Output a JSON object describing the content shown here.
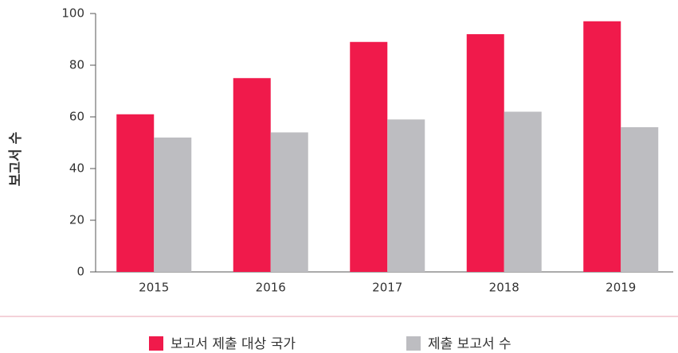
{
  "chart_data": {
    "type": "bar",
    "y_label": "보고서 수",
    "categories": [
      "2015",
      "2016",
      "2017",
      "2018",
      "2019"
    ],
    "series": [
      {
        "name": "보고서 제출 대상 국가",
        "color": "#f01a4b",
        "values": [
          61,
          75,
          89,
          92,
          97
        ]
      },
      {
        "name": "제출 보고서 수",
        "color": "#bdbdc1",
        "values": [
          52,
          54,
          59,
          62,
          56
        ]
      }
    ],
    "ylim": [
      0,
      100
    ],
    "yticks": [
      0,
      20,
      40,
      60,
      80,
      100
    ]
  }
}
